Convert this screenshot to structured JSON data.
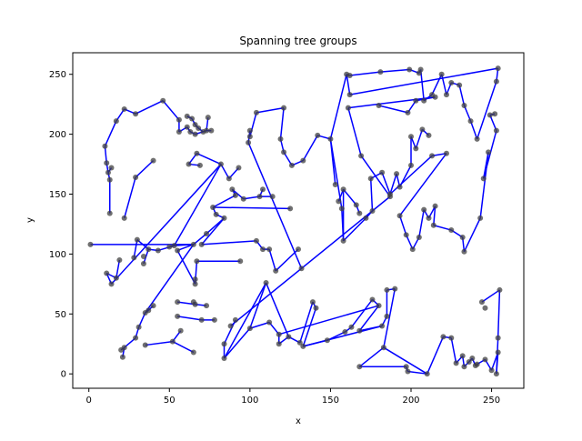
{
  "chart_data": {
    "type": "scatter",
    "title": "Spanning tree groups",
    "xlabel": "x",
    "ylabel": "y",
    "xlim": [
      -10,
      270
    ],
    "ylim": [
      -12,
      268
    ],
    "xticks": [
      0,
      50,
      100,
      150,
      200,
      250
    ],
    "yticks": [
      0,
      50,
      100,
      150,
      200,
      250
    ],
    "grid": false,
    "legend": "none",
    "colors": {
      "edge": "#0000ff",
      "point": "#404040",
      "axis": "#000000"
    },
    "points": [
      [
        1,
        108
      ],
      [
        11,
        84
      ],
      [
        14,
        75
      ],
      [
        17,
        80
      ],
      [
        19,
        95
      ],
      [
        28,
        97
      ],
      [
        30,
        112
      ],
      [
        34,
        98
      ],
      [
        37,
        104
      ],
      [
        34,
        92
      ],
      [
        43,
        103
      ],
      [
        53,
        107
      ],
      [
        55,
        103
      ],
      [
        65,
        108
      ],
      [
        66,
        79
      ],
      [
        66,
        75
      ],
      [
        67,
        94
      ],
      [
        94,
        94
      ],
      [
        50,
        106
      ],
      [
        20,
        20
      ],
      [
        22,
        22
      ],
      [
        21,
        14
      ],
      [
        29,
        30
      ],
      [
        31,
        39
      ],
      [
        35,
        51
      ],
      [
        37,
        53
      ],
      [
        40,
        57
      ],
      [
        35,
        24
      ],
      [
        52,
        27
      ],
      [
        57,
        36
      ],
      [
        65,
        18
      ],
      [
        55,
        48
      ],
      [
        70,
        45
      ],
      [
        78,
        45
      ],
      [
        55,
        60
      ],
      [
        66,
        58
      ],
      [
        73,
        57
      ],
      [
        65,
        60
      ],
      [
        10,
        190
      ],
      [
        11,
        176
      ],
      [
        12,
        168
      ],
      [
        14,
        172
      ],
      [
        13,
        162
      ],
      [
        13,
        134
      ],
      [
        22,
        130
      ],
      [
        29,
        164
      ],
      [
        40,
        178
      ],
      [
        17,
        211
      ],
      [
        22,
        221
      ],
      [
        29,
        217
      ],
      [
        46,
        228
      ],
      [
        56,
        212
      ],
      [
        56,
        202
      ],
      [
        61,
        206
      ],
      [
        63,
        202
      ],
      [
        66,
        200
      ],
      [
        61,
        215
      ],
      [
        64,
        213
      ],
      [
        66,
        208
      ],
      [
        68,
        205
      ],
      [
        71,
        202
      ],
      [
        73,
        203
      ],
      [
        74,
        214
      ],
      [
        76,
        203
      ],
      [
        62,
        175
      ],
      [
        67,
        184
      ],
      [
        82,
        175
      ],
      [
        87,
        163
      ],
      [
        93,
        172
      ],
      [
        69,
        174
      ],
      [
        89,
        154
      ],
      [
        91,
        149
      ],
      [
        96,
        146
      ],
      [
        106,
        148
      ],
      [
        108,
        154
      ],
      [
        114,
        148
      ],
      [
        125,
        138
      ],
      [
        77,
        139
      ],
      [
        79,
        133
      ],
      [
        84,
        130
      ],
      [
        73,
        117
      ],
      [
        70,
        108
      ],
      [
        104,
        111
      ],
      [
        108,
        104
      ],
      [
        112,
        104
      ],
      [
        116,
        86
      ],
      [
        130,
        104
      ],
      [
        132,
        88
      ],
      [
        99,
        193
      ],
      [
        100,
        203
      ],
      [
        100,
        198
      ],
      [
        104,
        218
      ],
      [
        121,
        222
      ],
      [
        119,
        196
      ],
      [
        121,
        185
      ],
      [
        126,
        174
      ],
      [
        133,
        178
      ],
      [
        142,
        199
      ],
      [
        150,
        196
      ],
      [
        153,
        158
      ],
      [
        155,
        144
      ],
      [
        157,
        138
      ],
      [
        158,
        111
      ],
      [
        158,
        154
      ],
      [
        166,
        141
      ],
      [
        168,
        134
      ],
      [
        172,
        130
      ],
      [
        176,
        136
      ],
      [
        175,
        163
      ],
      [
        182,
        168
      ],
      [
        187,
        150
      ],
      [
        191,
        167
      ],
      [
        193,
        156
      ],
      [
        200,
        174
      ],
      [
        200,
        198
      ],
      [
        203,
        188
      ],
      [
        207,
        204
      ],
      [
        211,
        199
      ],
      [
        213,
        182
      ],
      [
        222,
        184
      ],
      [
        193,
        132
      ],
      [
        197,
        116
      ],
      [
        201,
        104
      ],
      [
        205,
        114
      ],
      [
        208,
        137
      ],
      [
        211,
        130
      ],
      [
        215,
        140
      ],
      [
        214,
        124
      ],
      [
        225,
        120
      ],
      [
        232,
        114
      ],
      [
        233,
        102
      ],
      [
        243,
        130
      ],
      [
        248,
        185
      ],
      [
        245,
        163
      ],
      [
        253,
        203
      ],
      [
        249,
        216
      ],
      [
        252,
        217
      ],
      [
        160,
        250
      ],
      [
        162,
        249
      ],
      [
        181,
        252
      ],
      [
        199,
        254
      ],
      [
        205,
        251
      ],
      [
        206,
        254
      ],
      [
        208,
        228
      ],
      [
        213,
        233
      ],
      [
        219,
        250
      ],
      [
        222,
        233
      ],
      [
        225,
        243
      ],
      [
        230,
        241
      ],
      [
        233,
        224
      ],
      [
        237,
        211
      ],
      [
        241,
        196
      ],
      [
        253,
        244
      ],
      [
        254,
        255
      ],
      [
        162,
        233
      ],
      [
        180,
        224
      ],
      [
        198,
        218
      ],
      [
        203,
        228
      ],
      [
        215,
        231
      ],
      [
        161,
        222
      ],
      [
        169,
        182
      ],
      [
        187,
        148
      ],
      [
        88,
        40
      ],
      [
        91,
        45
      ],
      [
        84,
        25
      ],
      [
        84,
        13
      ],
      [
        110,
        76
      ],
      [
        100,
        38
      ],
      [
        112,
        43
      ],
      [
        118,
        33
      ],
      [
        118,
        25
      ],
      [
        124,
        31
      ],
      [
        131,
        26
      ],
      [
        139,
        60
      ],
      [
        141,
        55
      ],
      [
        133,
        23
      ],
      [
        148,
        28
      ],
      [
        159,
        35
      ],
      [
        163,
        39
      ],
      [
        176,
        62
      ],
      [
        180,
        57
      ],
      [
        168,
        36
      ],
      [
        182,
        40
      ],
      [
        185,
        48
      ],
      [
        185,
        70
      ],
      [
        190,
        71
      ],
      [
        183,
        22
      ],
      [
        168,
        6
      ],
      [
        197,
        6
      ],
      [
        198,
        2
      ],
      [
        210,
        0
      ],
      [
        220,
        31
      ],
      [
        225,
        30
      ],
      [
        228,
        9
      ],
      [
        232,
        15
      ],
      [
        233,
        6
      ],
      [
        236,
        10
      ],
      [
        238,
        13
      ],
      [
        240,
        7
      ],
      [
        241,
        8
      ],
      [
        246,
        12
      ],
      [
        250,
        3
      ],
      [
        254,
        18
      ],
      [
        253,
        0
      ],
      [
        254,
        30
      ],
      [
        255,
        70
      ],
      [
        244,
        60
      ],
      [
        246,
        55
      ]
    ],
    "edges": [
      [
        0,
        13
      ],
      [
        13,
        11
      ],
      [
        11,
        10
      ],
      [
        10,
        8
      ],
      [
        8,
        9
      ],
      [
        8,
        6
      ],
      [
        6,
        5
      ],
      [
        11,
        18
      ],
      [
        12,
        13
      ],
      [
        12,
        15
      ],
      [
        15,
        14
      ],
      [
        15,
        16
      ],
      [
        16,
        17
      ],
      [
        1,
        2
      ],
      [
        1,
        3
      ],
      [
        3,
        4
      ],
      [
        11,
        66
      ],
      [
        2,
        66
      ],
      [
        13,
        80
      ],
      [
        80,
        79
      ],
      [
        79,
        78
      ],
      [
        78,
        77
      ],
      [
        77,
        76
      ],
      [
        77,
        71
      ],
      [
        71,
        70
      ],
      [
        70,
        72
      ],
      [
        72,
        73
      ],
      [
        73,
        74
      ],
      [
        73,
        75
      ],
      [
        19,
        20
      ],
      [
        20,
        21
      ],
      [
        20,
        22
      ],
      [
        22,
        23
      ],
      [
        23,
        24
      ],
      [
        24,
        25
      ],
      [
        25,
        26
      ],
      [
        27,
        28
      ],
      [
        28,
        29
      ],
      [
        28,
        30
      ],
      [
        31,
        32
      ],
      [
        32,
        33
      ],
      [
        34,
        35
      ],
      [
        35,
        36
      ],
      [
        35,
        37
      ],
      [
        14,
        15
      ],
      [
        24,
        13
      ],
      [
        38,
        39
      ],
      [
        39,
        40
      ],
      [
        40,
        41
      ],
      [
        40,
        42
      ],
      [
        42,
        43
      ],
      [
        44,
        45
      ],
      [
        45,
        46
      ],
      [
        38,
        47
      ],
      [
        47,
        48
      ],
      [
        48,
        49
      ],
      [
        49,
        50
      ],
      [
        50,
        51
      ],
      [
        51,
        52
      ],
      [
        52,
        53
      ],
      [
        53,
        54
      ],
      [
        54,
        55
      ],
      [
        56,
        57
      ],
      [
        57,
        58
      ],
      [
        58,
        59
      ],
      [
        59,
        60
      ],
      [
        60,
        61
      ],
      [
        61,
        62
      ],
      [
        55,
        61
      ],
      [
        61,
        63
      ],
      [
        64,
        65
      ],
      [
        65,
        66
      ],
      [
        66,
        67
      ],
      [
        67,
        68
      ],
      [
        69,
        64
      ],
      [
        81,
        82
      ],
      [
        82,
        83
      ],
      [
        83,
        84
      ],
      [
        84,
        85
      ],
      [
        85,
        86
      ],
      [
        81,
        79
      ],
      [
        87,
        88
      ],
      [
        88,
        89
      ],
      [
        89,
        90
      ],
      [
        90,
        91
      ],
      [
        91,
        92
      ],
      [
        92,
        93
      ],
      [
        93,
        94
      ],
      [
        94,
        95
      ],
      [
        95,
        96
      ],
      [
        96,
        97
      ],
      [
        97,
        98
      ],
      [
        98,
        101
      ],
      [
        101,
        102
      ],
      [
        102,
        103
      ],
      [
        103,
        104
      ],
      [
        104,
        105
      ],
      [
        98,
        99
      ],
      [
        100,
        103
      ],
      [
        102,
        106
      ],
      [
        106,
        107
      ],
      [
        107,
        108
      ],
      [
        108,
        109
      ],
      [
        109,
        110
      ],
      [
        110,
        111
      ],
      [
        111,
        112
      ],
      [
        112,
        113
      ],
      [
        113,
        114
      ],
      [
        114,
        115
      ],
      [
        115,
        116
      ],
      [
        116,
        117
      ],
      [
        110,
        118
      ],
      [
        118,
        119
      ],
      [
        119,
        120
      ],
      [
        120,
        121
      ],
      [
        121,
        122
      ],
      [
        122,
        123
      ],
      [
        123,
        124
      ],
      [
        124,
        125
      ],
      [
        125,
        126
      ],
      [
        126,
        127
      ],
      [
        127,
        128
      ],
      [
        128,
        129
      ],
      [
        129,
        130
      ],
      [
        130,
        131
      ],
      [
        131,
        132
      ],
      [
        132,
        133
      ],
      [
        133,
        134
      ],
      [
        134,
        135
      ],
      [
        135,
        136
      ],
      [
        137,
        138
      ],
      [
        138,
        139
      ],
      [
        139,
        140
      ],
      [
        140,
        141
      ],
      [
        141,
        142
      ],
      [
        142,
        143
      ],
      [
        143,
        144
      ],
      [
        144,
        145
      ],
      [
        145,
        146
      ],
      [
        146,
        147
      ],
      [
        147,
        148
      ],
      [
        148,
        149
      ],
      [
        149,
        150
      ],
      [
        150,
        151
      ],
      [
        151,
        152
      ],
      [
        152,
        153
      ],
      [
        153,
        154
      ],
      [
        154,
        137
      ],
      [
        155,
        156
      ],
      [
        156,
        157
      ],
      [
        157,
        158
      ],
      [
        158,
        159
      ],
      [
        159,
        160
      ],
      [
        160,
        161
      ],
      [
        161,
        162
      ],
      [
        98,
        137
      ],
      [
        163,
        164
      ],
      [
        164,
        165
      ],
      [
        165,
        166
      ],
      [
        166,
        167
      ],
      [
        167,
        168
      ],
      [
        168,
        169
      ],
      [
        169,
        170
      ],
      [
        170,
        171
      ],
      [
        171,
        172
      ],
      [
        172,
        173
      ],
      [
        173,
        174
      ],
      [
        174,
        175
      ],
      [
        175,
        176
      ],
      [
        176,
        177
      ],
      [
        177,
        178
      ],
      [
        178,
        179
      ],
      [
        179,
        180
      ],
      [
        180,
        181
      ],
      [
        181,
        182
      ],
      [
        182,
        183
      ],
      [
        183,
        184
      ],
      [
        184,
        185
      ],
      [
        185,
        186
      ],
      [
        186,
        187
      ],
      [
        187,
        188
      ],
      [
        188,
        189
      ],
      [
        189,
        190
      ],
      [
        190,
        191
      ],
      [
        191,
        192
      ],
      [
        192,
        193
      ],
      [
        193,
        194
      ],
      [
        194,
        195
      ],
      [
        195,
        196
      ],
      [
        196,
        197
      ],
      [
        197,
        198
      ],
      [
        198,
        199
      ],
      [
        199,
        200
      ],
      [
        200,
        201
      ],
      [
        201,
        202
      ],
      [
        202,
        203
      ],
      [
        203,
        204
      ],
      [
        204,
        205
      ],
      [
        205,
        206
      ],
      [
        165,
        167
      ],
      [
        166,
        171
      ],
      [
        169,
        180
      ],
      [
        175,
        182
      ],
      [
        186,
        190
      ]
    ]
  }
}
